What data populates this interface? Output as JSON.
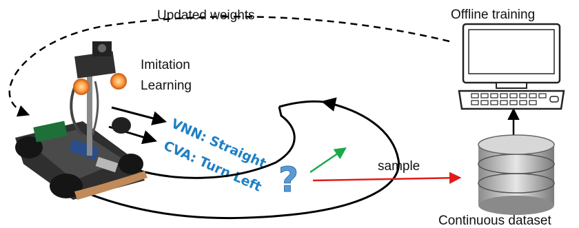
{
  "labels": {
    "updated_weights": "Updated weights",
    "offline_training": "Offline training",
    "imitation_line1": "Imitation",
    "imitation_line2": "Learning",
    "sample": "sample",
    "continuous_dataset": "Continuous dataset",
    "vnn": "VNN: Straight",
    "cva": "CVA: Turn Left",
    "question": "?"
  },
  "colors": {
    "prediction_text": "#1f7fc4",
    "question_mark": "#5b9bd5",
    "sample_arrow": "#e01b1b",
    "green_arrow": "#1aa84a",
    "line": "#000000"
  },
  "icons": {
    "robot": "robot-car-icon",
    "computer": "computer-icon",
    "database": "database-icon"
  }
}
